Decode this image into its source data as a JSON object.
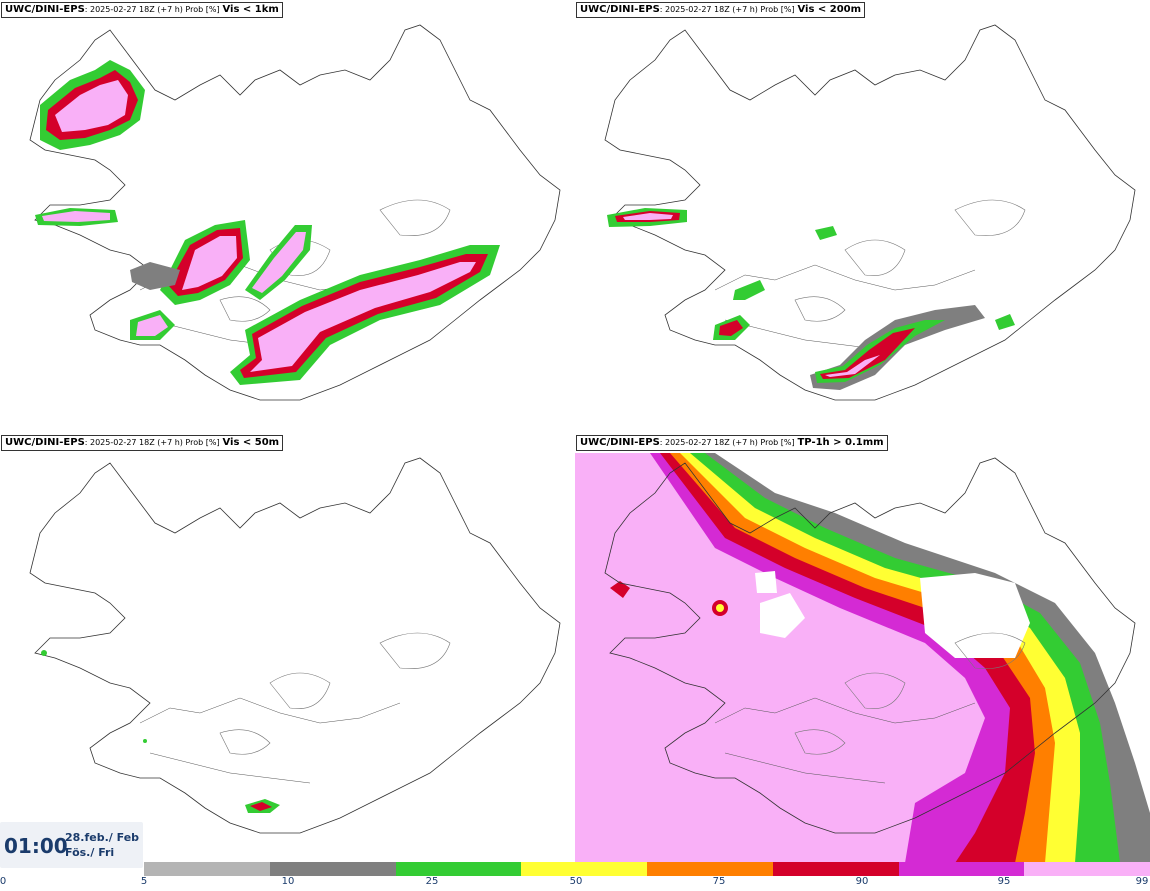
{
  "panels": [
    {
      "model": "UWC/DINI-EPS",
      "meta": ": 2025-02-27 18Z (+7 h) Prob [%]",
      "threshold": "Vis < 1km"
    },
    {
      "model": "UWC/DINI-EPS",
      "meta": ": 2025-02-27 18Z (+7 h) Prob [%]",
      "threshold": "Vis < 200m"
    },
    {
      "model": "UWC/DINI-EPS",
      "meta": ": 2025-02-27 18Z (+7 h) Prob [%]",
      "threshold": "Vis < 50m"
    },
    {
      "model": "UWC/DINI-EPS",
      "meta": ": 2025-02-27 18Z (+7 h) Prob [%]",
      "threshold": "TP-1h > 0.1mm"
    }
  ],
  "clock": {
    "time": "01:00",
    "date_line1": "28.feb./ Feb",
    "date_line2": "Fös./ Fri"
  },
  "legend": {
    "ticks": [
      "0",
      "5",
      "10",
      "25",
      "50",
      "75",
      "90",
      "95",
      "99"
    ],
    "colors": [
      "#b4b4b4",
      "#7f7f7f",
      "#33cc33",
      "#ffff33",
      "#ff7f00",
      "#d4002a",
      "#d42ad4",
      "#f9b0f7"
    ]
  }
}
